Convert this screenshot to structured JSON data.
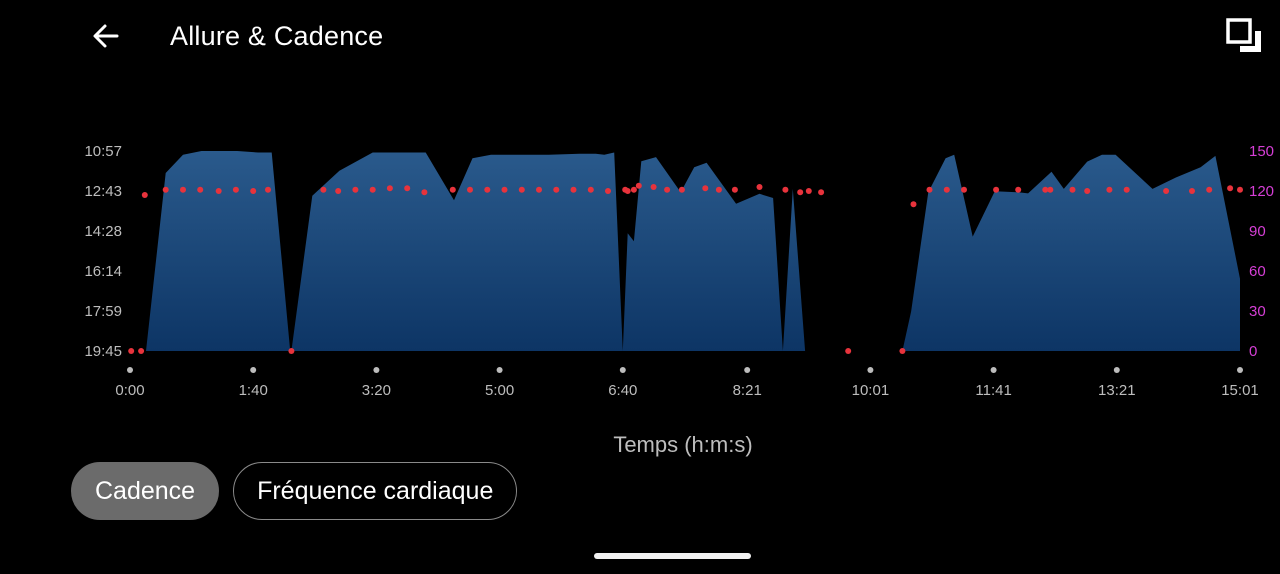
{
  "header": {
    "title": "Allure & Cadence",
    "back_icon": "arrow-left-icon",
    "fullscreen_icon": "fullscreen-toggle-icon"
  },
  "chips": [
    {
      "label": "Cadence",
      "active": true
    },
    {
      "label": "Fréquence cardiaque",
      "active": false
    }
  ],
  "colors": {
    "background": "#000000",
    "pace_area_top": "#2a5a8c",
    "pace_area_bottom": "#0d3565",
    "cadence_dots": "#e8333c",
    "cadence_axis": "#d63fd6",
    "axis_text": "#bdbdbd"
  },
  "chart_data": {
    "type": "area",
    "xlabel": "Temps (h:m:s)",
    "x_ticks": [
      "0:00",
      "1:40",
      "3:20",
      "5:00",
      "6:40",
      "8:21",
      "10:01",
      "11:41",
      "13:21",
      "15:01"
    ],
    "x_tick_seconds": [
      0,
      100,
      200,
      300,
      400,
      501,
      601,
      701,
      801,
      901
    ],
    "x_range_seconds": [
      0,
      901
    ],
    "y_left": {
      "label": "Allure",
      "ticks": [
        "10:57",
        "12:43",
        "14:28",
        "16:14",
        "17:59",
        "19:45"
      ],
      "tick_seconds": [
        657,
        763,
        868,
        974,
        1079,
        1185
      ],
      "range_seconds": [
        657,
        1185
      ],
      "inverted": true
    },
    "y_right": {
      "label": "Cadence",
      "ticks": [
        "150",
        "120",
        "90",
        "60",
        "30",
        "0"
      ],
      "tick_values": [
        150,
        120,
        90,
        60,
        30,
        0
      ],
      "range": [
        0,
        150
      ]
    },
    "series": [
      {
        "kind": "area",
        "axis": "left",
        "points": [
          [
            13,
            1185
          ],
          [
            29,
            715
          ],
          [
            43,
            667
          ],
          [
            58,
            657
          ],
          [
            87,
            657
          ],
          [
            104,
            661
          ],
          [
            115,
            661
          ],
          [
            130,
            1185
          ],
          [
            131,
            1185
          ],
          [
            148,
            775
          ],
          [
            170,
            709
          ],
          [
            197,
            661
          ],
          [
            240,
            661
          ],
          [
            263,
            787
          ],
          [
            278,
            676
          ],
          [
            293,
            667
          ],
          [
            340,
            667
          ],
          [
            365,
            664
          ],
          [
            378,
            664
          ],
          [
            385,
            667
          ],
          [
            393,
            661
          ],
          [
            400,
            1185
          ],
          [
            404,
            874
          ],
          [
            409,
            895
          ],
          [
            415,
            684
          ],
          [
            427,
            673
          ],
          [
            447,
            766
          ],
          [
            458,
            700
          ],
          [
            468,
            688
          ],
          [
            492,
            796
          ],
          [
            511,
            770
          ],
          [
            522,
            781
          ],
          [
            530,
            1185
          ],
          [
            538,
            757
          ],
          [
            548,
            1185
          ],
          [
            627,
            1185
          ],
          [
            634,
            1081
          ],
          [
            648,
            766
          ],
          [
            662,
            676
          ],
          [
            669,
            667
          ],
          [
            684,
            883
          ],
          [
            702,
            763
          ],
          [
            721,
            766
          ],
          [
            729,
            769
          ],
          [
            748,
            712
          ],
          [
            758,
            757
          ],
          [
            777,
            685
          ],
          [
            789,
            667
          ],
          [
            800,
            667
          ],
          [
            830,
            757
          ],
          [
            849,
            727
          ],
          [
            869,
            700
          ],
          [
            881,
            670
          ],
          [
            901,
            994
          ],
          [
            901,
            1185
          ]
        ]
      },
      {
        "kind": "scatter",
        "axis": "right",
        "points": [
          [
            1,
            0
          ],
          [
            9,
            0
          ],
          [
            12,
            117
          ],
          [
            29,
            121
          ],
          [
            43,
            121
          ],
          [
            57,
            121
          ],
          [
            72,
            120
          ],
          [
            86,
            121
          ],
          [
            100,
            120
          ],
          [
            112,
            121
          ],
          [
            131,
            0
          ],
          [
            157,
            121
          ],
          [
            169,
            120
          ],
          [
            183,
            121
          ],
          [
            197,
            121
          ],
          [
            211,
            122
          ],
          [
            225,
            122
          ],
          [
            239,
            119
          ],
          [
            262,
            121
          ],
          [
            276,
            121
          ],
          [
            290,
            121
          ],
          [
            304,
            121
          ],
          [
            318,
            121
          ],
          [
            332,
            121
          ],
          [
            346,
            121
          ],
          [
            360,
            121
          ],
          [
            374,
            121
          ],
          [
            388,
            120
          ],
          [
            402,
            121
          ],
          [
            404,
            120
          ],
          [
            409,
            121
          ],
          [
            413,
            124
          ],
          [
            425,
            123
          ],
          [
            436,
            121
          ],
          [
            448,
            121
          ],
          [
            467,
            122
          ],
          [
            478,
            121
          ],
          [
            491,
            121
          ],
          [
            511,
            123
          ],
          [
            532,
            121
          ],
          [
            544,
            119
          ],
          [
            551,
            120
          ],
          [
            561,
            119
          ],
          [
            583,
            0
          ],
          [
            627,
            0
          ],
          [
            636,
            110
          ],
          [
            649,
            121
          ],
          [
            663,
            121
          ],
          [
            677,
            121
          ],
          [
            703,
            121
          ],
          [
            721,
            121
          ],
          [
            743,
            121
          ],
          [
            747,
            121
          ],
          [
            765,
            121
          ],
          [
            777,
            120
          ],
          [
            795,
            121
          ],
          [
            809,
            121
          ],
          [
            841,
            120
          ],
          [
            862,
            120
          ],
          [
            876,
            121
          ],
          [
            893,
            122
          ],
          [
            901,
            121
          ]
        ]
      }
    ]
  }
}
